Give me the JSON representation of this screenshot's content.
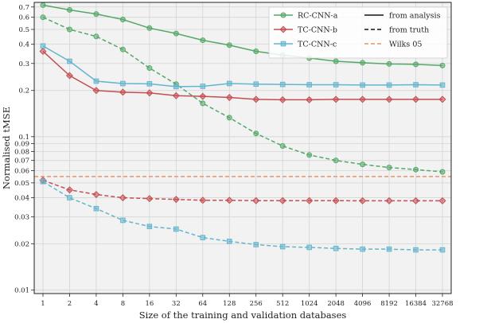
{
  "chart_data": {
    "type": "line",
    "xlabel": "Size of the training and validation databases",
    "ylabel": "Normalised tMSE",
    "yscale": "log",
    "ylim": [
      0.0095,
      0.75
    ],
    "grid": true,
    "legend_position": "top-right",
    "x_tick_labels": [
      "1",
      "2",
      "4",
      "8",
      "16",
      "32",
      "64",
      "128",
      "256",
      "512",
      "1024",
      "2048",
      "4096",
      "8192",
      "16384",
      "32768"
    ],
    "y_tick_values": [
      0.01,
      0.02,
      0.03,
      0.04,
      0.05,
      0.06,
      0.07,
      0.08,
      0.09,
      0.1,
      0.2,
      0.3,
      0.4,
      0.5,
      0.6,
      0.7
    ],
    "y_tick_labels": [
      "0.01",
      "0.02",
      "0.03",
      "0.04",
      "0.05",
      "0.06",
      "0.07",
      "0.08",
      "0.09",
      "0.1",
      "0.2",
      "0.3",
      "0.4",
      "0.5",
      "0.6",
      "0.7"
    ],
    "series": [
      {
        "name": "RC-CNN-a",
        "style": "from analysis",
        "color": "#55a868",
        "marker": "circle",
        "values": [
          0.72,
          0.67,
          0.63,
          0.58,
          0.51,
          0.47,
          0.425,
          0.395,
          0.36,
          0.34,
          0.325,
          0.31,
          0.303,
          0.298,
          0.296,
          0.291
        ]
      },
      {
        "name": "RC-CNN-a",
        "style": "from truth",
        "color": "#55a868",
        "marker": "circle",
        "values": [
          0.6,
          0.5,
          0.45,
          0.37,
          0.28,
          0.22,
          0.165,
          0.133,
          0.105,
          0.087,
          0.076,
          0.07,
          0.066,
          0.063,
          0.061,
          0.059
        ]
      },
      {
        "name": "TC-CNN-b",
        "style": "from analysis",
        "color": "#c44e52",
        "marker": "diamond",
        "values": [
          0.36,
          0.25,
          0.2,
          0.195,
          0.193,
          0.185,
          0.183,
          0.18,
          0.175,
          0.174,
          0.174,
          0.175,
          0.175,
          0.175,
          0.175,
          0.175
        ]
      },
      {
        "name": "TC-CNN-b",
        "style": "from truth",
        "color": "#c44e52",
        "marker": "diamond",
        "values": [
          0.052,
          0.045,
          0.042,
          0.04,
          0.0395,
          0.039,
          0.0385,
          0.0385,
          0.0383,
          0.0383,
          0.0383,
          0.0383,
          0.0382,
          0.0382,
          0.0382,
          0.0382
        ]
      },
      {
        "name": "TC-CNN-c",
        "style": "from analysis",
        "color": "#64b5cd",
        "marker": "square",
        "values": [
          0.39,
          0.31,
          0.23,
          0.222,
          0.221,
          0.212,
          0.213,
          0.222,
          0.22,
          0.219,
          0.218,
          0.218,
          0.217,
          0.217,
          0.218,
          0.217
        ]
      },
      {
        "name": "TC-CNN-c",
        "style": "from truth",
        "color": "#64b5cd",
        "marker": "square",
        "values": [
          0.051,
          0.04,
          0.034,
          0.0285,
          0.026,
          0.025,
          0.022,
          0.0208,
          0.0198,
          0.0192,
          0.019,
          0.0187,
          0.0185,
          0.0185,
          0.0183,
          0.0183
        ]
      }
    ],
    "reference_line": {
      "label": "Wilks 05",
      "value": 0.055,
      "color": "#e8966a"
    },
    "legend": {
      "models": [
        {
          "label": "RC-CNN-a",
          "color": "#55a868",
          "marker": "circle"
        },
        {
          "label": "TC-CNN-b",
          "color": "#c44e52",
          "marker": "diamond"
        },
        {
          "label": "TC-CNN-c",
          "color": "#64b5cd",
          "marker": "square"
        }
      ],
      "styles": [
        {
          "label": "from analysis",
          "dash": "solid"
        },
        {
          "label": "from truth",
          "dash": "dashed"
        },
        {
          "label": "Wilks 05",
          "dash": "dashed",
          "color": "#e8966a"
        }
      ]
    }
  }
}
